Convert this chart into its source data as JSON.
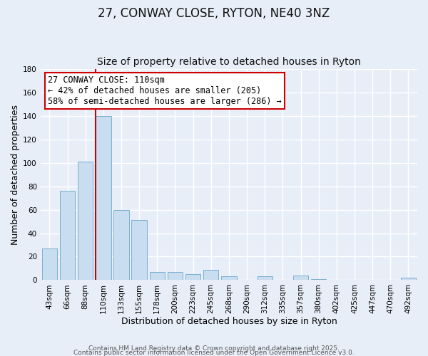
{
  "title": "27, CONWAY CLOSE, RYTON, NE40 3NZ",
  "subtitle": "Size of property relative to detached houses in Ryton",
  "xlabel": "Distribution of detached houses by size in Ryton",
  "ylabel": "Number of detached properties",
  "footer_line1": "Contains HM Land Registry data © Crown copyright and database right 2025.",
  "footer_line2": "Contains public sector information licensed under the Open Government Licence v3.0.",
  "bar_labels": [
    "43sqm",
    "66sqm",
    "88sqm",
    "110sqm",
    "133sqm",
    "155sqm",
    "178sqm",
    "200sqm",
    "223sqm",
    "245sqm",
    "268sqm",
    "290sqm",
    "312sqm",
    "335sqm",
    "357sqm",
    "380sqm",
    "402sqm",
    "425sqm",
    "447sqm",
    "470sqm",
    "492sqm"
  ],
  "bar_heights": [
    27,
    76,
    101,
    140,
    60,
    51,
    7,
    7,
    5,
    9,
    3,
    0,
    3,
    0,
    4,
    1,
    0,
    0,
    0,
    0,
    2
  ],
  "bar_color": "#c8ddf0",
  "bar_edgecolor": "#7aafcf",
  "ylim": [
    0,
    180
  ],
  "yticks": [
    0,
    20,
    40,
    60,
    80,
    100,
    120,
    140,
    160,
    180
  ],
  "vline_color": "#cc0000",
  "annotation_title": "27 CONWAY CLOSE: 110sqm",
  "annotation_line1": "← 42% of detached houses are smaller (205)",
  "annotation_line2": "58% of semi-detached houses are larger (286) →",
  "annotation_box_facecolor": "#ffffff",
  "annotation_box_edgecolor": "#cc0000",
  "fig_background": "#e8eef8",
  "ax_background": "#e8eef8",
  "grid_color": "#ffffff",
  "title_fontsize": 12,
  "subtitle_fontsize": 10,
  "axis_label_fontsize": 9,
  "tick_fontsize": 7.5,
  "annotation_fontsize": 8.5,
  "footer_fontsize": 6.5
}
